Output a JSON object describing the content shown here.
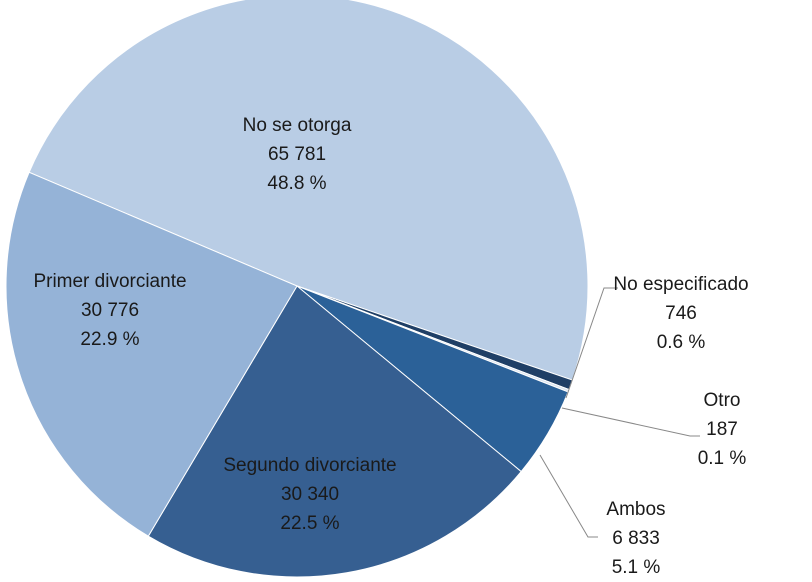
{
  "chart_data": {
    "type": "pie",
    "categories": [
      "No se otorga",
      "No especificado",
      "Otro",
      "Ambos",
      "Segundo divorciante",
      "Primer divorciante"
    ],
    "values": [
      65781,
      746,
      187,
      6833,
      30340,
      30776
    ],
    "value_labels": [
      "65 781",
      "746",
      "187",
      "6 833",
      "30 340",
      "30 776"
    ],
    "percents": [
      48.8,
      0.6,
      0.1,
      5.1,
      22.5,
      22.9
    ],
    "percent_labels": [
      "48.8 %",
      "0.6 %",
      "0.1 %",
      "5.1 %",
      "22.5 %",
      "22.9 %"
    ],
    "colors": [
      "#b9cde5",
      "#1f3f66",
      "#dce6f2",
      "#2b6198",
      "#365f91",
      "#95b3d7"
    ]
  }
}
